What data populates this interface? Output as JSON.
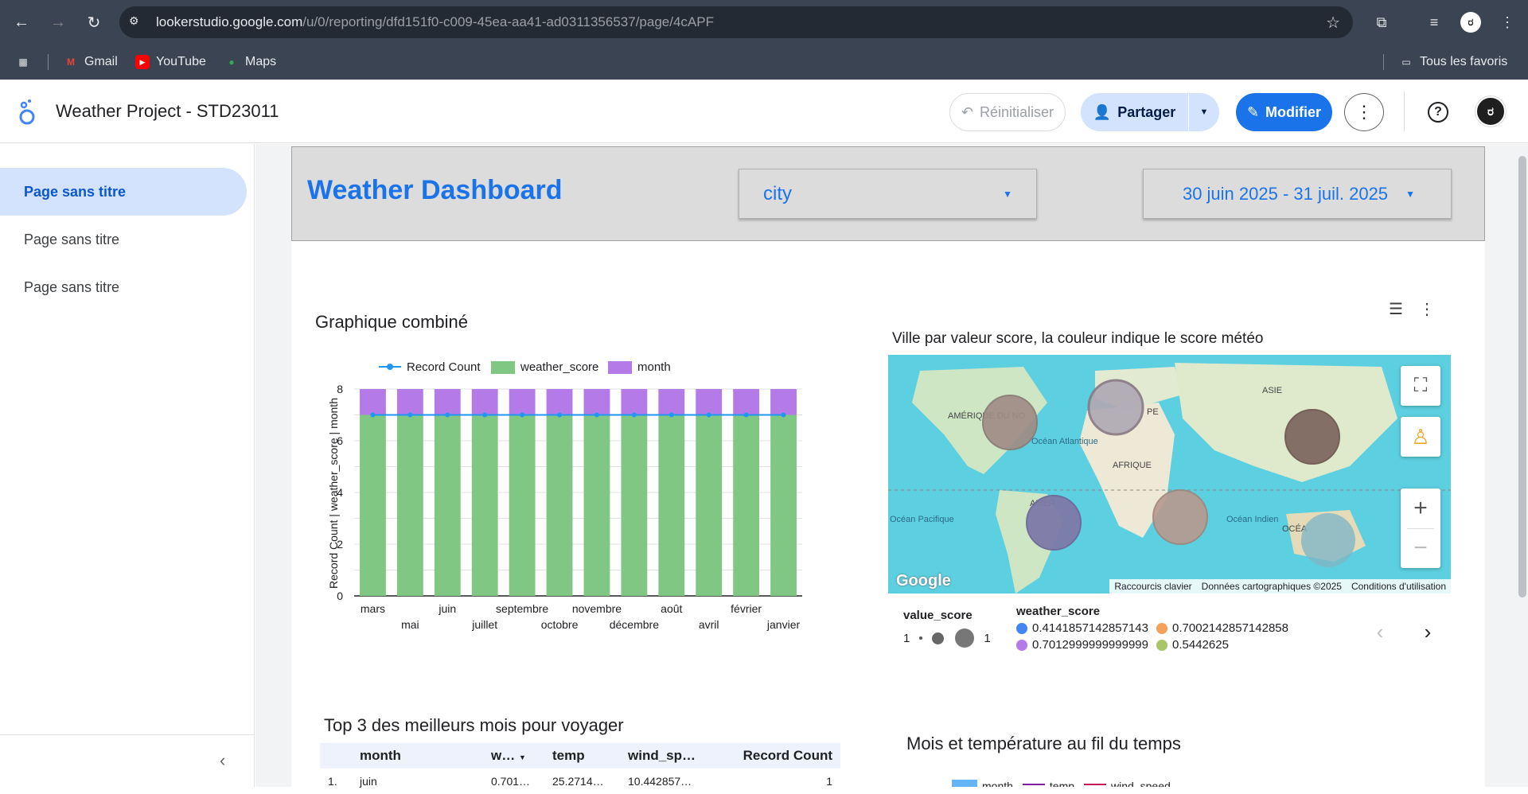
{
  "browser": {
    "url_main": "lookerstudio.google.com",
    "url_path": "/u/0/reporting/dfd151f0-c009-45ea-aa41-ad0311356537/page/4cAPF",
    "bookmarks": [
      "Gmail",
      "YouTube",
      "Maps"
    ],
    "all_bookmarks": "Tous les favoris",
    "profile_initial": "ರ"
  },
  "header": {
    "title": "Weather Project - STD23011",
    "reset_label": "Réinitialiser",
    "share_label": "Partager",
    "edit_label": "Modifier",
    "avatar_initial": "ರ"
  },
  "sidebar": {
    "items": [
      {
        "label": "Page sans titre"
      },
      {
        "label": "Page sans titre"
      },
      {
        "label": "Page sans titre"
      }
    ]
  },
  "dashboard": {
    "title": "Weather Dashboard",
    "city_filter": "city",
    "date_range": "30 juin 2025 - 31 juil. 2025"
  },
  "combo": {
    "title": "Graphique combiné",
    "legend": [
      "Record Count",
      "weather_score",
      "month"
    ],
    "ylabel": "Record Count | weather_score | month"
  },
  "chart_data": {
    "type": "bar",
    "title": "Graphique combiné",
    "ylabel": "Record Count | weather_score | month",
    "ylim": [
      0,
      8
    ],
    "yticks": [
      "0",
      "2",
      "4",
      "6",
      "8"
    ],
    "categories": [
      "mars",
      "mai",
      "juin",
      "juillet",
      "septembre",
      "octobre",
      "novembre",
      "décembre",
      "août",
      "avril",
      "février",
      "janvier"
    ],
    "series": [
      {
        "name": "weather_score",
        "kind": "bar",
        "color": "#81c784",
        "values": [
          7,
          7,
          7,
          7,
          7,
          7,
          7,
          7,
          7,
          7,
          7,
          7
        ]
      },
      {
        "name": "month",
        "kind": "bar",
        "color": "#b47ae8",
        "values": [
          1,
          1,
          1,
          1,
          1,
          1,
          1,
          1,
          1,
          1,
          1,
          1
        ]
      },
      {
        "name": "Record Count",
        "kind": "line",
        "color": "#2196f3",
        "values": [
          7,
          7,
          7,
          7,
          7,
          7,
          7,
          7,
          7,
          7,
          7,
          7
        ]
      }
    ]
  },
  "map": {
    "title": "Ville par valeur score, la couleur indique le score météo",
    "labels": {
      "north_america": "AMÉRIQUE\nDU NO",
      "atlantic": "Océan\nAtlantique",
      "asia": "ASIE",
      "africa": "AFRIQUE",
      "south_america": "AMÉR",
      "pacific": "Océan\nPacifique",
      "indian": "Océan\nIndien",
      "oceania": "OCÉA",
      "europe": "PE"
    },
    "attribution": [
      "Raccourcis clavier",
      "Données cartographiques ©2025",
      "Conditions d'utilisation"
    ],
    "google": "Google",
    "legend": {
      "size_title": "value_score",
      "size_min": "1",
      "size_max": "1",
      "color_title": "weather_score",
      "items": [
        {
          "label": "0.4141857142857143",
          "color": "#4285f4"
        },
        {
          "label": "0.7002142857142858",
          "color": "#f6a05a"
        },
        {
          "label": "0.7012999999999999",
          "color": "#b47ae8"
        },
        {
          "label": "0.5442625",
          "color": "#a8c56a"
        }
      ]
    }
  },
  "table": {
    "title": "Top 3 des meilleurs mois pour voyager",
    "headers": [
      "",
      "month",
      "w…",
      "temp",
      "wind_sp…",
      "Record Count"
    ],
    "rows": [
      [
        "1.",
        "juin",
        "0.701…",
        "25.2714…",
        "10.442857…",
        "1"
      ]
    ]
  },
  "line_chart": {
    "title": "Mois et température au fil du temps",
    "legend": [
      "month",
      "temp",
      "wind_speed"
    ]
  }
}
